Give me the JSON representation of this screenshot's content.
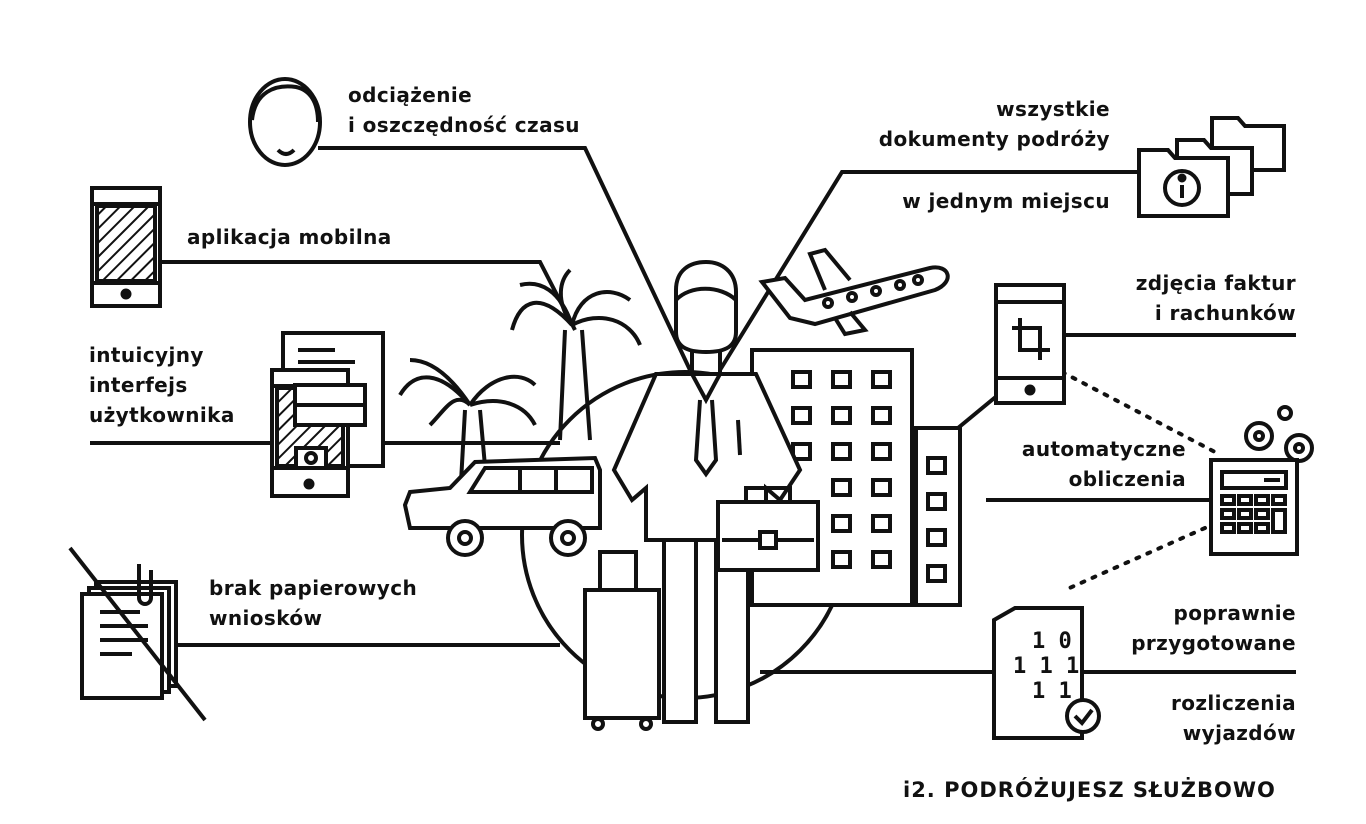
{
  "labels": {
    "relief": [
      "odciążenie",
      "i oszczędność czasu"
    ],
    "mobile_app": "aplikacja mobilna",
    "ui": [
      "intuicyjny",
      "interfejs",
      "użytkownika"
    ],
    "no_paper": [
      "brak papierowych",
      "wniosków"
    ],
    "documents": [
      "wszystkie",
      "dokumenty podróży",
      "w jednym miejscu"
    ],
    "photos": [
      "zdjęcia faktur",
      "i rachunków"
    ],
    "auto_calc": [
      "automatyczne",
      "obliczenia"
    ],
    "correct": [
      "poprawnie",
      "przygotowane"
    ],
    "settlements": [
      "rozliczenia",
      "wyjazdów"
    ]
  },
  "binary_lines": [
    "1 0",
    "1 1 1",
    "1 1"
  ],
  "footer": "i2. PODRÓŻUJESZ SŁUŻBOWO",
  "colors": {
    "ink": "#111111",
    "background": "#ffffff"
  },
  "icons": [
    "person-face-icon",
    "phone-hatched-icon",
    "document-form-icon",
    "no-paper-icon",
    "folders-info-icon",
    "phone-crop-icon",
    "calculator-gears-icon",
    "binary-document-check-icon",
    "palm-tree-icon",
    "car-icon",
    "businessman-icon",
    "airplane-icon",
    "hotel-building-icon",
    "suitcase-icon",
    "briefcase-icon"
  ]
}
